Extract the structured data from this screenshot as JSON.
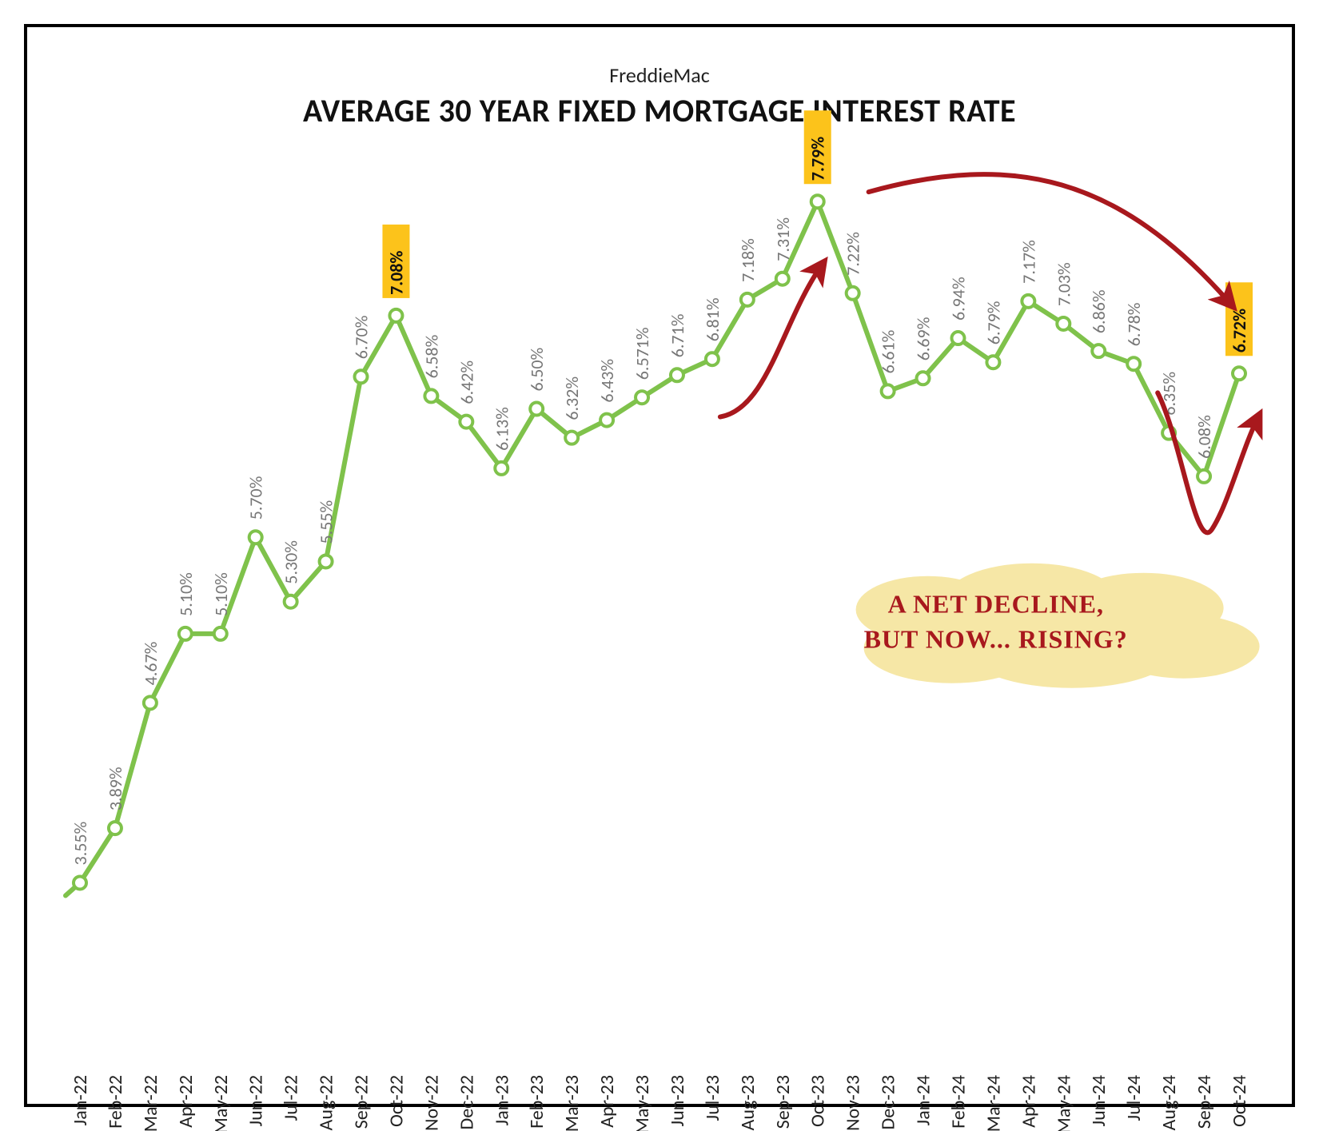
{
  "subtitle": "FreddieMac",
  "title": "AVERAGE 30 YEAR FIXED MORTGAGE INTEREST RATE",
  "chart": {
    "type": "line",
    "line_color": "#7fc24b",
    "line_width": 6,
    "marker": {
      "shape": "circle",
      "radius": 8,
      "fill": "#ffffff",
      "stroke": "#7fc24b",
      "stroke_width": 4
    },
    "ylim_min": 3.0,
    "ylim_max": 8.0,
    "highlight_box_fill": "#fcc31b",
    "highlight_text_color": "#111111",
    "value_label_color": "#777777",
    "value_label_fontsize": 22,
    "xaxis_label_fontsize": 24,
    "xaxis_label_color": "#222222",
    "data": [
      {
        "label": "Jan-22",
        "value": 3.55,
        "display": "3.55%",
        "highlight": false
      },
      {
        "label": "Feb-22",
        "value": 3.89,
        "display": "3.89%",
        "highlight": false
      },
      {
        "label": "Mar-22",
        "value": 4.67,
        "display": "4.67%",
        "highlight": false
      },
      {
        "label": "Apr-22",
        "value": 5.1,
        "display": "5.10%",
        "highlight": false
      },
      {
        "label": "May-22",
        "value": 5.1,
        "display": "5.10%",
        "highlight": false
      },
      {
        "label": "Jun-22",
        "value": 5.7,
        "display": "5.70%",
        "highlight": false
      },
      {
        "label": "Jul-22",
        "value": 5.3,
        "display": "5.30%",
        "highlight": false
      },
      {
        "label": "Aug-22",
        "value": 5.55,
        "display": "5.55%",
        "highlight": false
      },
      {
        "label": "Sep-22",
        "value": 6.7,
        "display": "6.70%",
        "highlight": false
      },
      {
        "label": "Oct-22",
        "value": 7.08,
        "display": "7.08%",
        "highlight": true
      },
      {
        "label": "Nov-22",
        "value": 6.58,
        "display": "6.58%",
        "highlight": false
      },
      {
        "label": "Dec-22",
        "value": 6.42,
        "display": "6.42%",
        "highlight": false
      },
      {
        "label": "Jan-23",
        "value": 6.13,
        "display": "6.13%",
        "highlight": false
      },
      {
        "label": "Feb-23",
        "value": 6.5,
        "display": "6.50%",
        "highlight": false
      },
      {
        "label": "Mar-23",
        "value": 6.32,
        "display": "6.32%",
        "highlight": false
      },
      {
        "label": "Apr-23",
        "value": 6.43,
        "display": "6.43%",
        "highlight": false
      },
      {
        "label": "May-23",
        "value": 6.571,
        "display": "6.571%",
        "highlight": false
      },
      {
        "label": "Jun-23",
        "value": 6.71,
        "display": "6.71%",
        "highlight": false
      },
      {
        "label": "Jul-23",
        "value": 6.81,
        "display": "6.81%",
        "highlight": false
      },
      {
        "label": "Aug-23",
        "value": 7.18,
        "display": "7.18%",
        "highlight": false
      },
      {
        "label": "Sep-23",
        "value": 7.31,
        "display": "7.31%",
        "highlight": false
      },
      {
        "label": "Oct-23",
        "value": 7.79,
        "display": "7.79%",
        "highlight": true
      },
      {
        "label": "Nov-23",
        "value": 7.22,
        "display": "7.22%",
        "highlight": false
      },
      {
        "label": "Dec-23",
        "value": 6.61,
        "display": "6.61%",
        "highlight": false
      },
      {
        "label": "Jan-24",
        "value": 6.69,
        "display": "6.69%",
        "highlight": false
      },
      {
        "label": "Feb-24",
        "value": 6.94,
        "display": "6.94%",
        "highlight": false
      },
      {
        "label": "Mar-24",
        "value": 6.79,
        "display": "6.79%",
        "highlight": false
      },
      {
        "label": "Apr-24",
        "value": 7.17,
        "display": "7.17%",
        "highlight": false
      },
      {
        "label": "May-24",
        "value": 7.03,
        "display": "7.03%",
        "highlight": false
      },
      {
        "label": "Jun-24",
        "value": 6.86,
        "display": "6.86%",
        "highlight": false
      },
      {
        "label": "Jul-24",
        "value": 6.78,
        "display": "6.78%",
        "highlight": false
      },
      {
        "label": "Aug-24",
        "value": 6.35,
        "display": "6.35%",
        "highlight": false
      },
      {
        "label": "Sep-24",
        "value": 6.08,
        "display": "6.08%",
        "highlight": false
      },
      {
        "label": "Oct-24",
        "value": 6.72,
        "display": "6.72%",
        "highlight": true
      }
    ]
  },
  "annotation": {
    "line1": "A NET DECLINE,",
    "line2": "BUT NOW... RISING?",
    "text_color": "#a8181d",
    "bg_fill": "#f6e7a6",
    "font_family": "Comic Sans MS",
    "arrow_color": "#a8181d",
    "arrow_stroke_width": 6
  }
}
